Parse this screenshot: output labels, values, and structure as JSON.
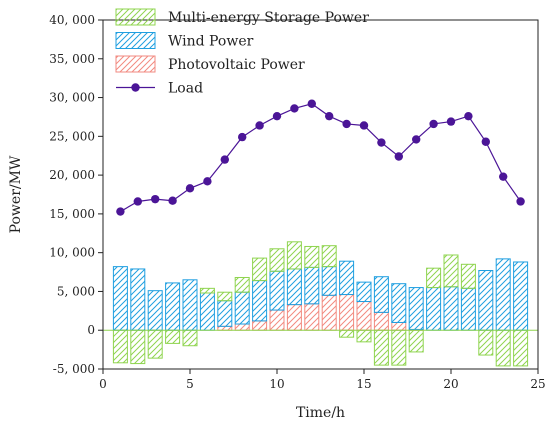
{
  "chart_data": {
    "type": "bar",
    "xlabel": "Time/h",
    "ylabel": "Power/MW",
    "xlim": [
      0,
      25
    ],
    "ylim": [
      -5000,
      40000
    ],
    "x_ticks": [
      0,
      5,
      10,
      15,
      20,
      25
    ],
    "x_tick_labels": [
      "0",
      "5",
      "10",
      "15",
      "20",
      "25"
    ],
    "y_ticks": [
      -5000,
      0,
      5000,
      10000,
      15000,
      20000,
      25000,
      30000,
      35000,
      40000
    ],
    "y_tick_labels": [
      "-5, 000",
      "0",
      "5, 000",
      "10, 000",
      "15, 000",
      "20, 000",
      "25, 000",
      "30, 000",
      "35, 000",
      "40, 000"
    ],
    "grid": false,
    "legend_position": "top-left",
    "x": [
      1,
      2,
      3,
      4,
      5,
      6,
      7,
      8,
      9,
      10,
      11,
      12,
      13,
      14,
      15,
      16,
      17,
      18,
      19,
      20,
      21,
      22,
      23,
      24
    ],
    "series": [
      {
        "name": "Multi-energy Storage Power",
        "style": "stacked-bar",
        "color": "#8fd44f",
        "values": [
          -4200,
          -4300,
          -3600,
          -1700,
          -2000,
          600,
          1100,
          1900,
          2900,
          2900,
          3500,
          2700,
          2700,
          -900,
          -1500,
          -4500,
          -4500,
          -2800,
          2500,
          4100,
          3100,
          -3200,
          -4600,
          -4600
        ]
      },
      {
        "name": "Wind Power",
        "style": "stacked-bar",
        "color": "#1f9fe0",
        "values": [
          8200,
          7900,
          5100,
          6100,
          6500,
          4800,
          3300,
          4100,
          5200,
          5000,
          4600,
          4700,
          3700,
          4300,
          2500,
          4600,
          5000,
          5400,
          5500,
          5600,
          5400,
          7700,
          9200,
          8800
        ]
      },
      {
        "name": "Photovoltaic Power",
        "style": "stacked-bar",
        "color": "#f28a80",
        "values": [
          0,
          0,
          0,
          0,
          0,
          0,
          500,
          800,
          1200,
          2600,
          3300,
          3400,
          4500,
          4600,
          3700,
          2300,
          1000,
          100,
          0,
          0,
          0,
          0,
          0,
          0
        ]
      },
      {
        "name": "Load",
        "style": "line-marker",
        "color": "#4b1597",
        "values": [
          15300,
          16600,
          16900,
          16700,
          18300,
          19200,
          22000,
          24900,
          26400,
          27600,
          28600,
          29200,
          27600,
          26600,
          26400,
          24200,
          22400,
          24600,
          26600,
          26900,
          27600,
          24300,
          19800,
          16600
        ]
      }
    ]
  }
}
